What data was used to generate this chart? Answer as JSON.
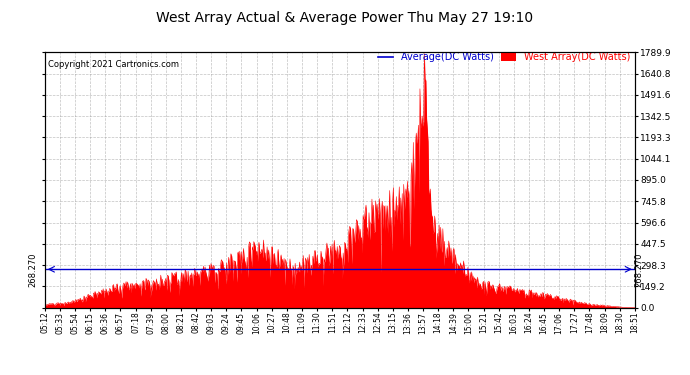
{
  "title": "West Array Actual & Average Power Thu May 27 19:10",
  "copyright": "Copyright 2021 Cartronics.com",
  "legend_avg": "Average(DC Watts)",
  "legend_west": "West Array(DC Watts)",
  "avg_value": 268.27,
  "ylim": [
    0,
    1789.9
  ],
  "yticks": [
    0.0,
    149.2,
    298.3,
    447.5,
    596.6,
    745.8,
    895.0,
    1044.1,
    1193.3,
    1342.5,
    1491.6,
    1640.8,
    1789.9
  ],
  "bg_color": "#ffffff",
  "fill_color": "#ff0000",
  "avg_line_color": "#0000cd",
  "grid_color": "#999999",
  "title_color": "#000000",
  "copyright_color": "#000000",
  "avg_label_color": "#0000cd",
  "west_label_color": "#ff0000",
  "xtick_labels": [
    "05:12",
    "05:33",
    "05:54",
    "06:15",
    "06:36",
    "06:57",
    "07:18",
    "07:39",
    "08:00",
    "08:21",
    "08:42",
    "09:03",
    "09:24",
    "09:45",
    "10:06",
    "10:27",
    "10:48",
    "11:09",
    "11:30",
    "11:51",
    "12:12",
    "12:33",
    "12:54",
    "13:15",
    "13:36",
    "13:57",
    "14:18",
    "14:39",
    "15:00",
    "15:21",
    "15:42",
    "16:03",
    "16:24",
    "16:45",
    "17:06",
    "17:27",
    "17:48",
    "18:09",
    "18:30",
    "18:51"
  ],
  "seed": 12345,
  "n_dense": 800
}
